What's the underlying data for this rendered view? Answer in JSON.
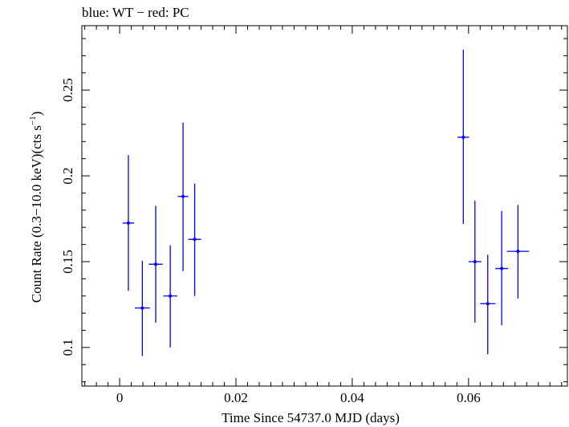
{
  "chart_data": {
    "type": "scatter",
    "title": "blue: WT − red: PC",
    "xlabel": "Time Since 54737.0 MJD (days)",
    "ylabel": {
      "main": "Count Rate (0.3−10.0 keV)(cts s",
      "sup": "−1",
      "close": ")"
    },
    "xlim": [
      -0.0065,
      0.077
    ],
    "ylim": [
      0.0775,
      0.2875
    ],
    "x_ticks": [
      {
        "value": 0,
        "label": "0"
      },
      {
        "value": 0.02,
        "label": "0.02"
      },
      {
        "value": 0.04,
        "label": "0.04"
      },
      {
        "value": 0.06,
        "label": "0.06"
      }
    ],
    "y_ticks": [
      {
        "value": 0.1,
        "label": "0.1"
      },
      {
        "value": 0.15,
        "label": "0.15"
      },
      {
        "value": 0.2,
        "label": "0.2"
      },
      {
        "value": 0.25,
        "label": "0.25"
      }
    ],
    "series": [
      {
        "name": "WT",
        "color": "#0000ff",
        "points": [
          {
            "x": 0.0015,
            "xerr": 0.001,
            "y": 0.1725,
            "ylo": 0.133,
            "yhi": 0.212
          },
          {
            "x": 0.0039,
            "xerr": 0.0013,
            "y": 0.123,
            "ylo": 0.095,
            "yhi": 0.1505
          },
          {
            "x": 0.0062,
            "xerr": 0.0012,
            "y": 0.1485,
            "ylo": 0.1145,
            "yhi": 0.1825
          },
          {
            "x": 0.0087,
            "xerr": 0.0012,
            "y": 0.13,
            "ylo": 0.1,
            "yhi": 0.1595
          },
          {
            "x": 0.0109,
            "xerr": 0.0009,
            "y": 0.188,
            "ylo": 0.1445,
            "yhi": 0.231
          },
          {
            "x": 0.0129,
            "xerr": 0.0011,
            "y": 0.163,
            "ylo": 0.13,
            "yhi": 0.1955
          },
          {
            "x": 0.0591,
            "xerr": 0.001,
            "y": 0.2225,
            "ylo": 0.172,
            "yhi": 0.2735
          },
          {
            "x": 0.0611,
            "xerr": 0.0011,
            "y": 0.15,
            "ylo": 0.1145,
            "yhi": 0.1855
          },
          {
            "x": 0.0633,
            "xerr": 0.0013,
            "y": 0.1255,
            "ylo": 0.096,
            "yhi": 0.154
          },
          {
            "x": 0.0657,
            "xerr": 0.0011,
            "y": 0.146,
            "ylo": 0.113,
            "yhi": 0.1795
          },
          {
            "x": 0.0685,
            "xerr": 0.0019,
            "y": 0.156,
            "ylo": 0.1285,
            "yhi": 0.183
          }
        ]
      }
    ]
  }
}
